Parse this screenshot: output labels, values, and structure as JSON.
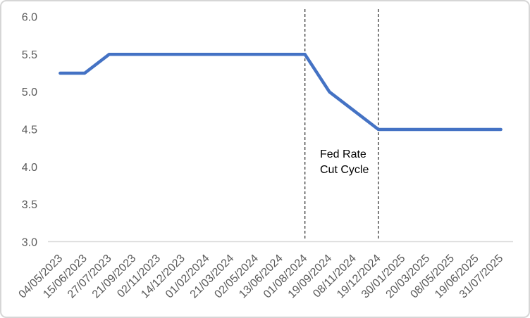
{
  "chart_data": {
    "type": "line",
    "title": "",
    "xlabel": "",
    "ylabel": "",
    "categories": [
      "04/05/2023",
      "15/06/2023",
      "27/07/2023",
      "21/09/2023",
      "02/11/2023",
      "14/12/2023",
      "01/02/2024",
      "21/03/2024",
      "02/05/2024",
      "13/06/2024",
      "01/08/2024",
      "19/09/2024",
      "08/11/2024",
      "19/12/2024",
      "30/01/2025",
      "20/03/2025",
      "08/05/2025",
      "19/06/2025",
      "31/07/2025"
    ],
    "series": [
      {
        "values": [
          5.25,
          5.25,
          5.5,
          5.5,
          5.5,
          5.5,
          5.5,
          5.5,
          5.5,
          5.5,
          5.5,
          5.0,
          4.75,
          4.5,
          4.5,
          4.5,
          4.5,
          4.5,
          4.5
        ]
      }
    ],
    "ylim": [
      3.0,
      6.0
    ],
    "ytick_step": 0.5,
    "yticks": [
      "6.0",
      "5.5",
      "5.0",
      "4.5",
      "4.0",
      "3.5",
      "3.0"
    ],
    "grid": "off",
    "legend": "none",
    "annotation": {
      "line1": "Fed Rate",
      "line2": "Cut Cycle"
    },
    "reference_lines": {
      "categories": [
        "01/08/2024",
        "19/12/2024"
      ],
      "style": "dashed",
      "color": "#262626"
    },
    "colors": {
      "line": "#4472C4",
      "tick_label": "#595959",
      "axis_line": "#D9D9D9",
      "annotation": "#000000",
      "border": "#D6D6D6"
    }
  }
}
